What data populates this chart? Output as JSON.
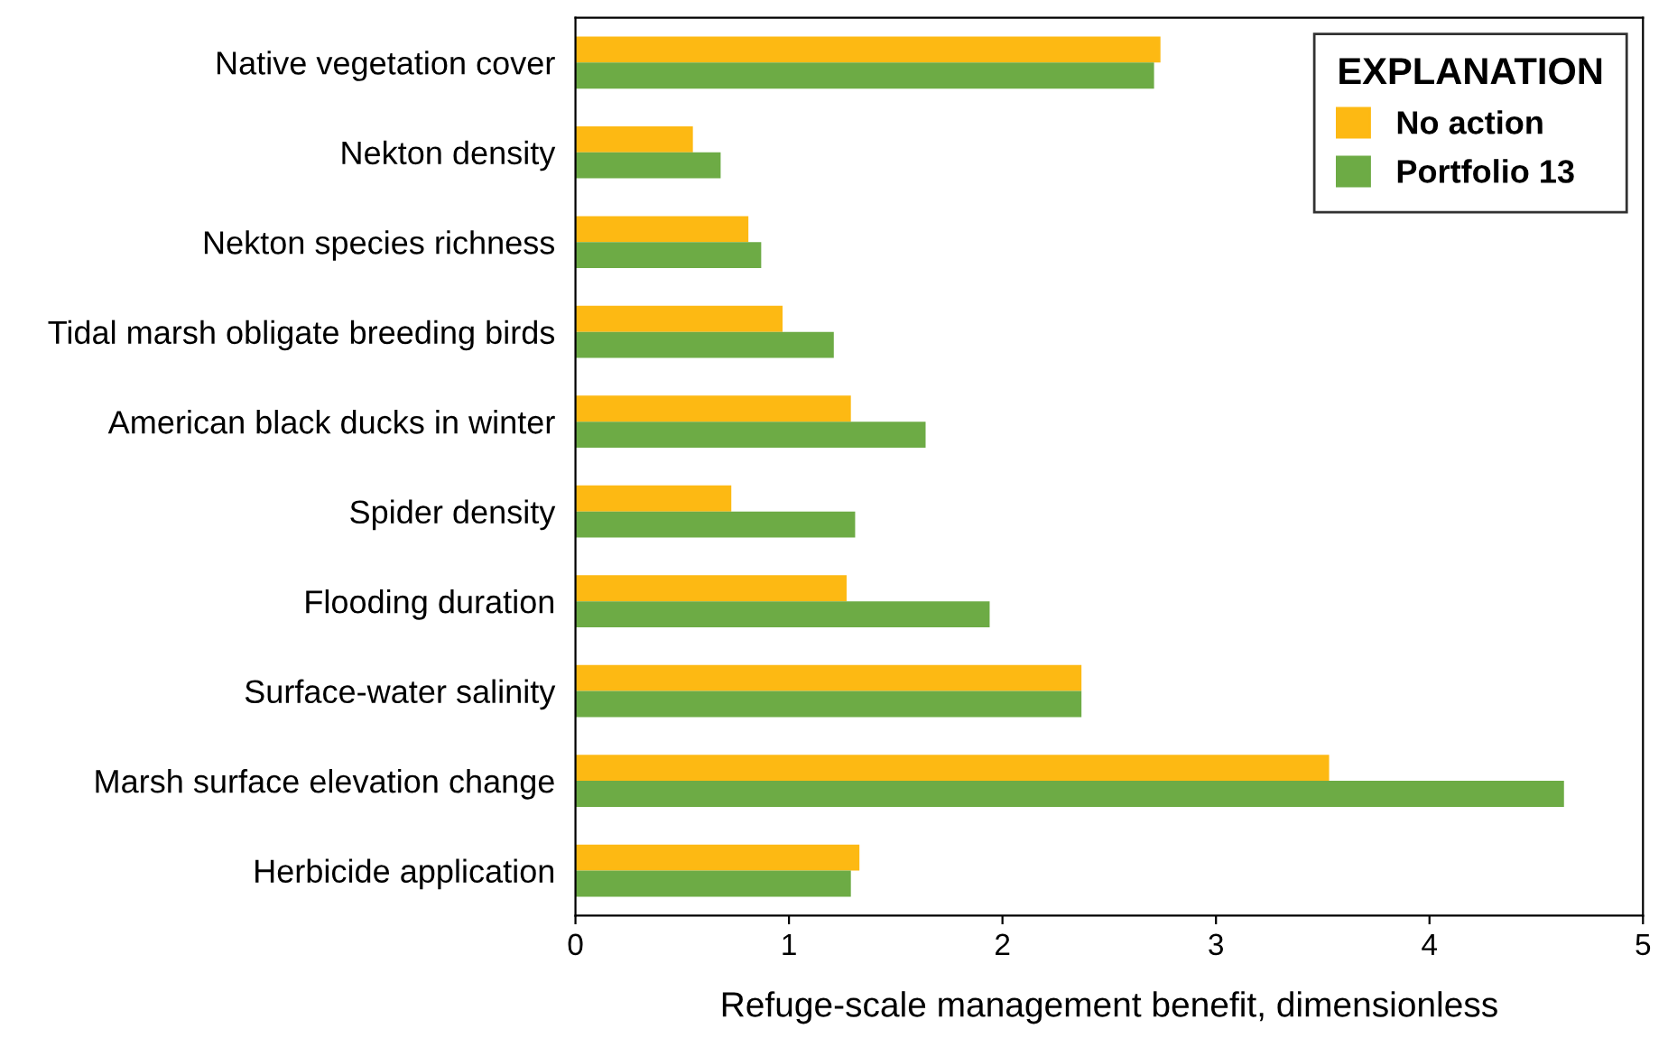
{
  "chart_data": {
    "type": "bar",
    "orientation": "horizontal",
    "xlabel": "Refuge-scale management benefit, dimensionless",
    "legend_title": "EXPLANATION",
    "legend": "top right",
    "grid": false,
    "categories": [
      "Native vegetation cover",
      "Nekton density",
      "Nekton species richness",
      "Tidal marsh obligate breeding birds",
      "American black ducks in winter",
      "Spider density",
      "Flooding duration",
      "Surface-water salinity",
      "Marsh surface elevation change",
      "Herbicide application"
    ],
    "series": [
      {
        "name": "No action",
        "color": "#fdb913",
        "values": [
          2.74,
          0.55,
          0.81,
          0.97,
          1.29,
          0.73,
          1.27,
          2.37,
          3.53,
          1.33
        ]
      },
      {
        "name": "Portfolio 13",
        "color": "#6dab45",
        "values": [
          2.71,
          0.68,
          0.87,
          1.21,
          1.64,
          1.31,
          1.94,
          2.37,
          4.63,
          1.29
        ]
      }
    ],
    "xlim": [
      0,
      5
    ],
    "xticks": [
      0,
      1,
      2,
      3,
      4,
      5
    ]
  }
}
